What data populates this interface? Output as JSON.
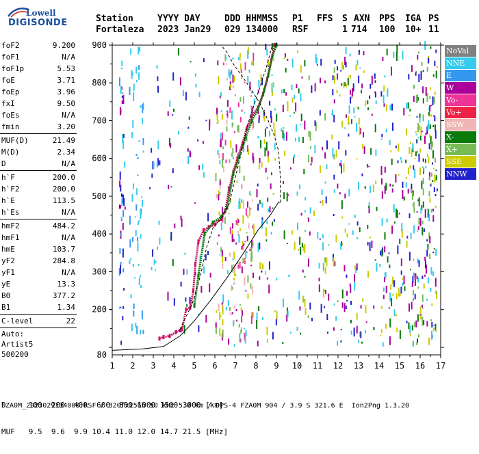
{
  "logo": {
    "top": "Lowell",
    "bottom": "DIGISONDE"
  },
  "header": {
    "labels": [
      "Station",
      "YYYY DAY",
      "DDD HHMMSS",
      "P1",
      "FFS",
      "S",
      "AXN",
      "PPS",
      "IGA",
      "PS"
    ],
    "values": [
      "Fortaleza",
      "2023 Jan29",
      "029 134000",
      "RSF",
      "",
      "1",
      "714",
      "100",
      "10+",
      "11"
    ]
  },
  "side_params": {
    "group1": [
      {
        "k": "foF2",
        "v": "9.200"
      },
      {
        "k": "foF1",
        "v": "N/A"
      },
      {
        "k": "foF1p",
        "v": "5.53"
      },
      {
        "k": "foE",
        "v": "3.71"
      },
      {
        "k": "foEp",
        "v": "3.96"
      },
      {
        "k": "fxI",
        "v": "9.50"
      },
      {
        "k": "foEs",
        "v": "N/A"
      },
      {
        "k": "fmin",
        "v": "3.20"
      }
    ],
    "group2": [
      {
        "k": "MUF(D)",
        "v": "21.49"
      },
      {
        "k": "M(D)",
        "v": "2.34"
      },
      {
        "k": "D",
        "v": "N/A"
      }
    ],
    "group3": [
      {
        "k": "h`F",
        "v": "200.0"
      },
      {
        "k": "h`F2",
        "v": "200.0"
      },
      {
        "k": "h`E",
        "v": "113.5"
      },
      {
        "k": "h`Es",
        "v": "N/A"
      }
    ],
    "group4": [
      {
        "k": "hmF2",
        "v": "484.2"
      },
      {
        "k": "hmF1",
        "v": "N/A"
      },
      {
        "k": "hmE",
        "v": "103.7"
      },
      {
        "k": "yF2",
        "v": "284.8"
      },
      {
        "k": "yF1",
        "v": "N/A"
      },
      {
        "k": "yE",
        "v": "13.3"
      },
      {
        "k": "B0",
        "v": "377.2"
      },
      {
        "k": "B1",
        "v": "1.34"
      }
    ],
    "group5": [
      {
        "k": "C-level",
        "v": "22"
      }
    ],
    "autoscale": [
      "Auto:",
      "Artist5",
      "500200"
    ]
  },
  "legend": [
    {
      "label": "NoVal",
      "color": "#808080"
    },
    {
      "label": "NNE",
      "color": "#33ccee"
    },
    {
      "label": "E",
      "color": "#3399ee"
    },
    {
      "label": "W",
      "color": "#aa0099"
    },
    {
      "label": "Vo-",
      "color": "#ee3399"
    },
    {
      "label": "Vo+",
      "color": "#ee2244"
    },
    {
      "label": "SSW",
      "color": "#f0b4b4"
    },
    {
      "label": "X-",
      "color": "#0a7a0a"
    },
    {
      "label": "X+",
      "color": "#77bb55"
    },
    {
      "label": "SSE",
      "color": "#cccc00"
    },
    {
      "label": "NNW",
      "color": "#2222cc"
    }
  ],
  "footer": {
    "d_row": "D     100  200  400  600  800 1000 1500 3000 [km]",
    "muf_row": "MUF   9.5  9.6  9.9 10.4 11.0 12.0 14.7 21.5 [MHz]",
    "file_line": "FZA0M_2023029134000.RSF / 320fx256h 50 kHz 5.0 km / DPS-4 FZA0M 904 / 3.9 S 321.6 E  Ion2Png 1.3.20"
  },
  "chart_data": {
    "type": "scatter",
    "title": "",
    "xlabel": "",
    "ylabel": "",
    "xlim": [
      1,
      17
    ],
    "ylim": [
      80,
      900
    ],
    "xticks": [
      1,
      2,
      3,
      4,
      5,
      6,
      7,
      8,
      9,
      10,
      11,
      12,
      13,
      14,
      15,
      16,
      17
    ],
    "yticks": [
      100,
      200,
      300,
      400,
      500,
      600,
      700,
      800,
      900
    ],
    "y_tick_labels": [
      "",
      "200",
      "300",
      "400",
      "500",
      "600",
      "700",
      "800",
      "900"
    ],
    "y_extra_labels": [
      {
        "y": 80,
        "label": "80"
      }
    ],
    "grid": false,
    "legend_position": "right",
    "series": [
      {
        "type": "trace",
        "color": "#cc1166",
        "points": [
          [
            3.3,
            123
          ],
          [
            3.5,
            127
          ],
          [
            3.8,
            130
          ],
          [
            4.1,
            140
          ],
          [
            4.4,
            148
          ],
          [
            4.6,
            200
          ],
          [
            4.8,
            205
          ],
          [
            4.95,
            250
          ],
          [
            5.05,
            320
          ],
          [
            5.2,
            380
          ],
          [
            5.45,
            410
          ],
          [
            5.7,
            418
          ],
          [
            6.0,
            425
          ],
          [
            6.3,
            440
          ],
          [
            6.5,
            460
          ],
          [
            6.7,
            520
          ],
          [
            6.9,
            565
          ],
          [
            7.1,
            600
          ],
          [
            7.35,
            640
          ],
          [
            7.55,
            680
          ],
          [
            7.8,
            712
          ],
          [
            8.1,
            735
          ],
          [
            8.35,
            770
          ],
          [
            8.55,
            810
          ],
          [
            8.75,
            860
          ],
          [
            8.9,
            900
          ]
        ]
      },
      {
        "type": "trace",
        "color": "#0a7a0a",
        "points": [
          [
            5.0,
            210
          ],
          [
            5.2,
            290
          ],
          [
            5.5,
            400
          ],
          [
            5.9,
            430
          ],
          [
            6.3,
            445
          ],
          [
            6.6,
            470
          ],
          [
            6.9,
            560
          ],
          [
            7.2,
            605
          ],
          [
            7.5,
            655
          ],
          [
            7.8,
            700
          ],
          [
            8.1,
            730
          ],
          [
            8.4,
            780
          ],
          [
            8.6,
            820
          ],
          [
            8.8,
            870
          ],
          [
            9.0,
            900
          ]
        ]
      },
      {
        "type": "line",
        "color": "#000000",
        "dash": false,
        "points": [
          [
            1.0,
            92
          ],
          [
            2.5,
            96
          ],
          [
            3.5,
            102
          ],
          [
            4.3,
            130
          ],
          [
            5.0,
            170
          ],
          [
            5.8,
            225
          ],
          [
            6.6,
            285
          ],
          [
            7.4,
            350
          ],
          [
            8.1,
            410
          ],
          [
            8.7,
            450
          ],
          [
            9.1,
            484
          ],
          [
            9.2,
            484
          ]
        ]
      },
      {
        "type": "line",
        "color": "#000000",
        "dash": true,
        "points": [
          [
            9.2,
            484
          ],
          [
            9.18,
            560
          ],
          [
            9.1,
            620
          ],
          [
            8.9,
            660
          ],
          [
            8.6,
            700
          ],
          [
            8.2,
            745
          ],
          [
            7.8,
            780
          ],
          [
            7.3,
            820
          ],
          [
            6.9,
            850
          ],
          [
            6.6,
            880
          ],
          [
            6.3,
            900
          ]
        ]
      },
      {
        "type": "line",
        "color": "#000000",
        "dash": true,
        "points": [
          [
            4.3,
            148
          ],
          [
            4.9,
            215
          ],
          [
            5.3,
            290
          ],
          [
            5.6,
            365
          ],
          [
            5.9,
            415
          ],
          [
            6.3,
            440
          ],
          [
            6.7,
            480
          ],
          [
            7.0,
            550
          ],
          [
            7.3,
            620
          ],
          [
            7.6,
            690
          ],
          [
            7.9,
            740
          ],
          [
            8.2,
            790
          ],
          [
            8.5,
            840
          ],
          [
            8.8,
            900
          ]
        ]
      }
    ],
    "noise_bands": [
      {
        "x": [
          1.3,
          1.6
        ],
        "y": [
          100,
          880
        ],
        "colors": [
          "#33ccee",
          "#3399ee",
          "#2222cc",
          "#aa0099"
        ],
        "n": 45
      },
      {
        "x": [
          1.8,
          2.5
        ],
        "y": [
          110,
          890
        ],
        "colors": [
          "#33ccee",
          "#3399ee",
          "#33ccee"
        ],
        "n": 60
      },
      {
        "x": [
          2.8,
          3.3
        ],
        "y": [
          300,
          880
        ],
        "colors": [
          "#2222cc",
          "#33ccee"
        ],
        "n": 20
      },
      {
        "x": [
          3.6,
          4.8
        ],
        "y": [
          120,
          880
        ],
        "colors": [
          "#33ccee",
          "#aa0099",
          "#2222cc",
          "#0a7a0a"
        ],
        "n": 40
      },
      {
        "x": [
          5.0,
          5.8
        ],
        "y": [
          120,
          880
        ],
        "colors": [
          "#33ccee",
          "#aa0099",
          "#2222cc"
        ],
        "n": 25
      },
      {
        "x": [
          6.0,
          7.9
        ],
        "y": [
          100,
          890
        ],
        "colors": [
          "#aa0099",
          "#cccc00",
          "#f0b4b4",
          "#ee3399",
          "#33ccee",
          "#77bb55"
        ],
        "n": 260
      },
      {
        "x": [
          8.0,
          9.0
        ],
        "y": [
          100,
          890
        ],
        "colors": [
          "#cccc00",
          "#aa0099",
          "#33ccee",
          "#0a7a0a",
          "#2222cc"
        ],
        "n": 90
      },
      {
        "x": [
          9.2,
          10.4
        ],
        "y": [
          100,
          880
        ],
        "colors": [
          "#cccc00",
          "#aa0099",
          "#0a7a0a",
          "#33ccee"
        ],
        "n": 80
      },
      {
        "x": [
          10.5,
          12.0
        ],
        "y": [
          100,
          880
        ],
        "colors": [
          "#cccc00",
          "#aa0099",
          "#33ccee",
          "#2222cc",
          "#77bb55"
        ],
        "n": 90
      },
      {
        "x": [
          12.0,
          13.9
        ],
        "y": [
          100,
          880
        ],
        "colors": [
          "#cccc00",
          "#aa0099",
          "#33ccee",
          "#2222cc",
          "#0a7a0a"
        ],
        "n": 140
      },
      {
        "x": [
          14.0,
          15.6
        ],
        "y": [
          100,
          880
        ],
        "colors": [
          "#33ccee",
          "#aa0099",
          "#cccc00",
          "#2222cc",
          "#0a7a0a"
        ],
        "n": 130
      },
      {
        "x": [
          15.6,
          16.8
        ],
        "y": [
          100,
          890
        ],
        "colors": [
          "#0a7a0a",
          "#2222cc",
          "#33ccee",
          "#aa0099",
          "#cccc00",
          "#77bb55"
        ],
        "n": 200
      }
    ]
  }
}
